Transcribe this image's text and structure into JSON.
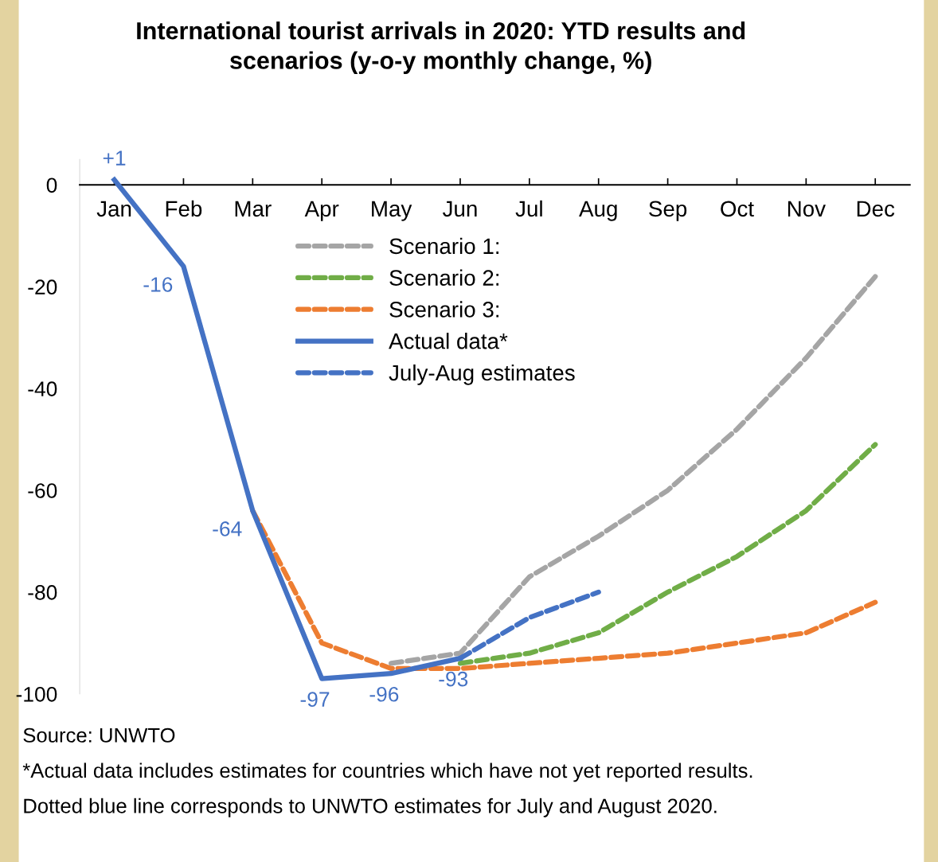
{
  "chart_data": {
    "type": "line",
    "title": "International tourist arrivals in 2020: YTD results and\nscenarios (y-o-y monthly change, %)",
    "categories": [
      "Jan",
      "Feb",
      "Mar",
      "Apr",
      "May",
      "Jun",
      "Jul",
      "Aug",
      "Sep",
      "Oct",
      "Nov",
      "Dec"
    ],
    "series": [
      {
        "name": "Scenario 1:",
        "color": "#a5a5a5",
        "line_style": "dashed",
        "values": [
          null,
          null,
          null,
          null,
          -94,
          -92,
          -77,
          -69,
          -60,
          -48,
          -34,
          -18
        ]
      },
      {
        "name": "Scenario 2:",
        "color": "#70ad47",
        "line_style": "dashed",
        "values": [
          null,
          null,
          null,
          null,
          null,
          -94,
          -92,
          -88,
          -80,
          -73,
          -64,
          -51
        ]
      },
      {
        "name": "Scenario 3:",
        "color": "#ed7d31",
        "line_style": "dashed",
        "values": [
          null,
          null,
          -64,
          -90,
          -95,
          -95,
          -94,
          -93,
          -92,
          -90,
          -88,
          -82
        ]
      },
      {
        "name": "Actual data*",
        "color": "#4472c4",
        "line_style": "solid",
        "values": [
          1,
          -16,
          -64,
          -97,
          -96,
          -93,
          null,
          null,
          null,
          null,
          null,
          null
        ],
        "value_labels": [
          "+1",
          "-16",
          "-64",
          "-97",
          "-96",
          "-93",
          null,
          null,
          null,
          null,
          null,
          null
        ]
      },
      {
        "name": "July-Aug estimates",
        "color": "#4472c4",
        "line_style": "dashed",
        "values": [
          null,
          null,
          null,
          null,
          null,
          -93,
          -85,
          -80,
          null,
          null,
          null,
          null
        ]
      }
    ],
    "ylim": [
      -100,
      5
    ],
    "yticks": [
      0,
      -20,
      -40,
      -60,
      -80,
      -100
    ],
    "grid": false,
    "legend": "top",
    "marker": "none",
    "annotations": [
      "Source: UNWTO",
      "*Actual data includes estimates for countries which have not yet reported results.",
      "Dotted blue line corresponds to UNWTO estimates for July and August 2020."
    ]
  }
}
